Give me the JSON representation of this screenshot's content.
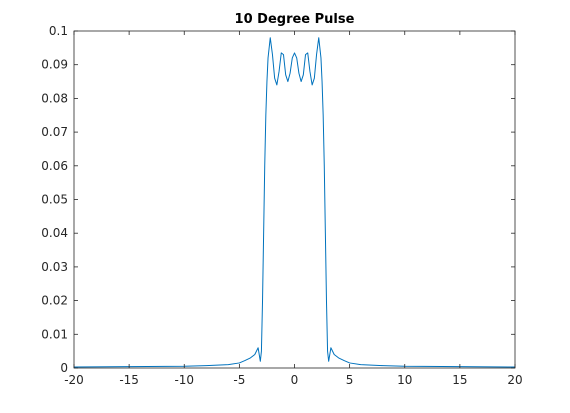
{
  "chart_data": {
    "type": "line",
    "title": "10 Degree Pulse",
    "xlabel": "",
    "ylabel": "",
    "xlim": [
      -20,
      20
    ],
    "ylim": [
      0,
      0.1
    ],
    "xticks": [
      -20,
      -15,
      -10,
      -5,
      0,
      5,
      10,
      15,
      20
    ],
    "yticks": [
      0,
      0.01,
      0.02,
      0.03,
      0.04,
      0.05,
      0.06,
      0.07,
      0.08,
      0.09,
      0.1
    ],
    "xtick_labels": [
      "-20",
      "-15",
      "-10",
      "-5",
      "0",
      "5",
      "10",
      "15",
      "20"
    ],
    "ytick_labels": [
      "0",
      "0.01",
      "0.02",
      "0.03",
      "0.04",
      "0.05",
      "0.06",
      "0.07",
      "0.08",
      "0.09",
      "0.1"
    ],
    "grid": false,
    "line_color": "#0072bd",
    "series": [
      {
        "values_description_free": true,
        "x": [
          -20,
          -15,
          -10,
          -8,
          -6,
          -5,
          -4.5,
          -4,
          -3.6,
          -3.3,
          -3.1,
          -3.0,
          -2.9,
          -2.8,
          -2.7,
          -2.6,
          -2.5,
          -2.4,
          -2.2,
          -2.0,
          -1.8,
          -1.6,
          -1.4,
          -1.2,
          -1.0,
          -0.8,
          -0.6,
          -0.4,
          -0.2,
          0,
          0.2,
          0.4,
          0.6,
          0.8,
          1.0,
          1.2,
          1.4,
          1.6,
          1.8,
          2.0,
          2.2,
          2.4,
          2.5,
          2.6,
          2.7,
          2.8,
          2.9,
          3.0,
          3.1,
          3.3,
          3.6,
          4.0,
          4.5,
          5.0,
          6.0,
          8.0,
          10.0,
          15.0,
          20.0
        ],
        "y": [
          0.0003,
          0.0004,
          0.0005,
          0.0007,
          0.001,
          0.0015,
          0.0022,
          0.003,
          0.004,
          0.006,
          0.002,
          0.005,
          0.02,
          0.04,
          0.06,
          0.075,
          0.085,
          0.092,
          0.098,
          0.093,
          0.086,
          0.084,
          0.088,
          0.0935,
          0.093,
          0.087,
          0.085,
          0.0875,
          0.092,
          0.0935,
          0.092,
          0.0875,
          0.085,
          0.087,
          0.093,
          0.0935,
          0.088,
          0.084,
          0.086,
          0.093,
          0.098,
          0.092,
          0.085,
          0.075,
          0.06,
          0.04,
          0.02,
          0.005,
          0.002,
          0.006,
          0.004,
          0.003,
          0.0022,
          0.0015,
          0.001,
          0.0007,
          0.0005,
          0.0004,
          0.0003
        ]
      }
    ]
  }
}
